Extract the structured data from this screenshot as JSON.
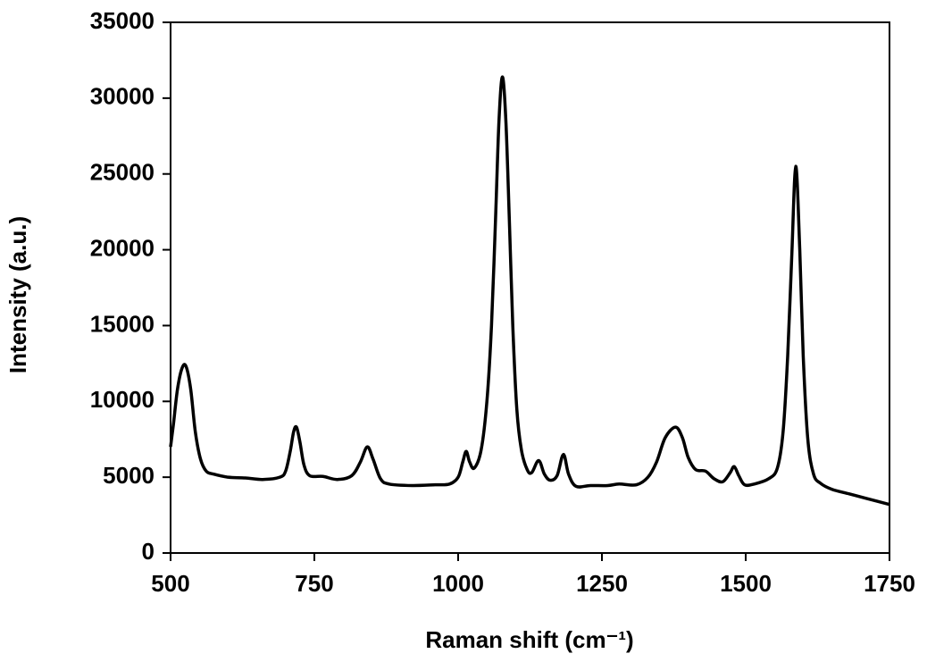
{
  "chart_data": {
    "type": "line",
    "xlabel": "Raman shift (cm⁻¹)",
    "ylabel": "Intensity (a.u.)",
    "xlim": [
      500,
      1750
    ],
    "xticks": [
      500,
      750,
      1000,
      1250,
      1500,
      1750
    ],
    "ylim": [
      0,
      35000
    ],
    "yticks": [
      0,
      5000,
      10000,
      15000,
      20000,
      25000,
      30000,
      35000
    ],
    "series": [
      {
        "color": "#000000",
        "x": [
          500,
          505,
          512,
          520,
          527,
          535,
          543,
          552,
          562,
          575,
          600,
          630,
          660,
          690,
          700,
          708,
          714,
          719,
          725,
          732,
          742,
          765,
          790,
          815,
          830,
          842,
          852,
          865,
          880,
          920,
          960,
          985,
          1000,
          1008,
          1014,
          1020,
          1028,
          1040,
          1050,
          1058,
          1065,
          1071,
          1077,
          1083,
          1089,
          1095,
          1102,
          1110,
          1120,
          1128,
          1140,
          1150,
          1160,
          1172,
          1183,
          1192,
          1205,
          1230,
          1260,
          1280,
          1310,
          1330,
          1345,
          1360,
          1378,
          1390,
          1400,
          1413,
          1430,
          1445,
          1460,
          1473,
          1480,
          1488,
          1498,
          1515,
          1540,
          1555,
          1565,
          1573,
          1580,
          1587,
          1594,
          1600,
          1608,
          1618,
          1630,
          1650,
          1680,
          1710,
          1750
        ],
        "values": [
          7000,
          8500,
          10800,
          12200,
          12300,
          10800,
          8000,
          6200,
          5400,
          5200,
          5000,
          4950,
          4850,
          5000,
          5400,
          6700,
          8000,
          8300,
          7300,
          5800,
          5100,
          5050,
          4850,
          5100,
          6000,
          7000,
          6200,
          4900,
          4550,
          4450,
          4500,
          4550,
          5000,
          6000,
          6700,
          6000,
          5600,
          6800,
          10000,
          15000,
          22000,
          28500,
          31400,
          28500,
          22000,
          15000,
          9500,
          6800,
          5500,
          5300,
          6100,
          5200,
          4800,
          5100,
          6500,
          5200,
          4400,
          4450,
          4450,
          4550,
          4500,
          5000,
          6000,
          7600,
          8300,
          7600,
          6300,
          5500,
          5400,
          4900,
          4700,
          5300,
          5700,
          5100,
          4500,
          4550,
          4900,
          5600,
          8000,
          13000,
          19500,
          25500,
          20000,
          13000,
          7500,
          5200,
          4600,
          4200,
          3900,
          3600,
          3200
        ]
      }
    ]
  }
}
